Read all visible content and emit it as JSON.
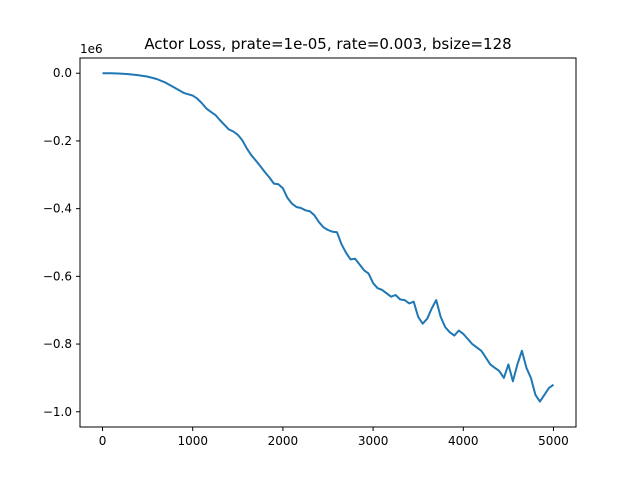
{
  "chart_data": {
    "type": "line",
    "title": "Actor Loss, prate=1e-05, rate=0.003, bsize=128",
    "xlabel": "",
    "ylabel": "",
    "y_offset_label": "1e6",
    "xlim": [
      -250,
      5250
    ],
    "ylim": [
      -1.045,
      0.045
    ],
    "x_ticks": [
      0,
      1000,
      2000,
      3000,
      4000,
      5000
    ],
    "x_tick_labels": [
      "0",
      "1000",
      "2000",
      "3000",
      "4000",
      "5000"
    ],
    "y_ticks": [
      0.0,
      -0.2,
      -0.4,
      -0.6,
      -0.8,
      -1.0
    ],
    "y_tick_labels": [
      "0.0",
      "−0.2",
      "−0.4",
      "−0.6",
      "−0.8",
      "−1.0"
    ],
    "grid": false,
    "series": [
      {
        "color": "#1f77b4",
        "x": [
          0,
          100,
          200,
          300,
          400,
          500,
          600,
          700,
          800,
          900,
          1000,
          1050,
          1100,
          1150,
          1200,
          1250,
          1300,
          1350,
          1400,
          1450,
          1500,
          1550,
          1600,
          1650,
          1700,
          1750,
          1800,
          1850,
          1900,
          1950,
          2000,
          2050,
          2100,
          2150,
          2200,
          2250,
          2300,
          2350,
          2400,
          2450,
          2500,
          2550,
          2600,
          2650,
          2700,
          2750,
          2800,
          2850,
          2900,
          2950,
          3000,
          3050,
          3100,
          3150,
          3200,
          3250,
          3300,
          3350,
          3400,
          3450,
          3500,
          3550,
          3600,
          3650,
          3700,
          3750,
          3800,
          3850,
          3900,
          3950,
          4000,
          4050,
          4100,
          4150,
          4200,
          4250,
          4300,
          4350,
          4400,
          4450,
          4500,
          4550,
          4600,
          4650,
          4700,
          4750,
          4800,
          4850,
          4900,
          4950,
          5000
        ],
        "y": [
          0.0,
          0.0,
          -0.001,
          -0.003,
          -0.006,
          -0.01,
          -0.017,
          -0.028,
          -0.043,
          -0.058,
          -0.066,
          -0.075,
          -0.088,
          -0.104,
          -0.114,
          -0.123,
          -0.138,
          -0.152,
          -0.166,
          -0.172,
          -0.182,
          -0.198,
          -0.222,
          -0.242,
          -0.258,
          -0.275,
          -0.292,
          -0.308,
          -0.326,
          -0.328,
          -0.34,
          -0.368,
          -0.385,
          -0.395,
          -0.398,
          -0.405,
          -0.408,
          -0.42,
          -0.44,
          -0.455,
          -0.463,
          -0.468,
          -0.47,
          -0.505,
          -0.53,
          -0.55,
          -0.548,
          -0.565,
          -0.582,
          -0.592,
          -0.62,
          -0.635,
          -0.64,
          -0.65,
          -0.66,
          -0.655,
          -0.668,
          -0.67,
          -0.68,
          -0.675,
          -0.72,
          -0.74,
          -0.725,
          -0.695,
          -0.67,
          -0.72,
          -0.75,
          -0.765,
          -0.775,
          -0.76,
          -0.77,
          -0.785,
          -0.8,
          -0.81,
          -0.82,
          -0.84,
          -0.86,
          -0.87,
          -0.88,
          -0.9,
          -0.86,
          -0.91,
          -0.86,
          -0.82,
          -0.87,
          -0.9,
          -0.95,
          -0.97,
          -0.95,
          -0.93,
          -0.92
        ]
      }
    ]
  }
}
